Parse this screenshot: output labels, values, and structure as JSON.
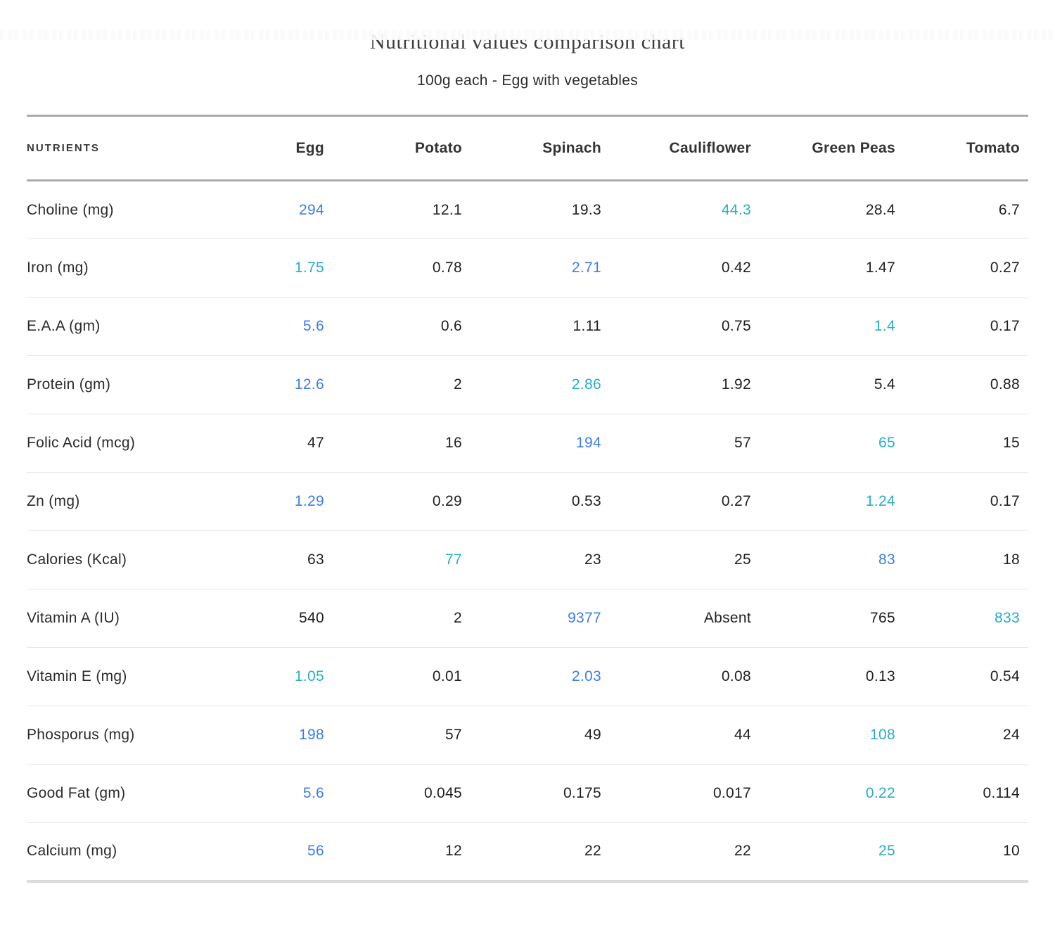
{
  "page": {
    "title": "Nutritional values comparison chart",
    "subtitle": "100g each - Egg with vegetables"
  },
  "colors": {
    "highlight_blue": "#3d7de9",
    "highlight_teal": "#29aec5",
    "line_dark": "#ababab",
    "line_light": "#e8e8e8",
    "line_bottom": "#dcdcdc"
  },
  "table": {
    "nutrients_header": "NUTRIENTS",
    "columns": [
      "Egg",
      "Potato",
      "Spinach",
      "Cauliflower",
      "Green Peas",
      "Tomato"
    ],
    "rows": [
      {
        "label": "Choline (mg)",
        "values": [
          "294",
          "12.1",
          "19.3",
          "44.3",
          "28.4",
          "6.7"
        ],
        "highlights": [
          "blue",
          null,
          null,
          "teal",
          null,
          null
        ]
      },
      {
        "label": "Iron (mg)",
        "values": [
          "1.75",
          "0.78",
          "2.71",
          "0.42",
          "1.47",
          "0.27"
        ],
        "highlights": [
          "teal",
          null,
          "blue",
          null,
          null,
          null
        ]
      },
      {
        "label": "E.A.A (gm)",
        "values": [
          "5.6",
          "0.6",
          "1.11",
          "0.75",
          "1.4",
          "0.17"
        ],
        "highlights": [
          "blue",
          null,
          null,
          null,
          "teal",
          null
        ]
      },
      {
        "label": "Protein (gm)",
        "values": [
          "12.6",
          "2",
          "2.86",
          "1.92",
          "5.4",
          "0.88"
        ],
        "highlights": [
          "blue",
          null,
          "teal",
          null,
          null,
          null
        ]
      },
      {
        "label": "Folic Acid (mcg)",
        "values": [
          "47",
          "16",
          "194",
          "57",
          "65",
          "15"
        ],
        "highlights": [
          null,
          null,
          "blue",
          null,
          "teal",
          null
        ]
      },
      {
        "label": "Zn (mg)",
        "values": [
          "1.29",
          "0.29",
          "0.53",
          "0.27",
          "1.24",
          "0.17"
        ],
        "highlights": [
          "blue",
          null,
          null,
          null,
          "teal",
          null
        ]
      },
      {
        "label": "Calories (Kcal)",
        "values": [
          "63",
          "77",
          "23",
          "25",
          "83",
          "18"
        ],
        "highlights": [
          null,
          "teal",
          null,
          null,
          "blue",
          null
        ]
      },
      {
        "label": "Vitamin A (IU)",
        "values": [
          "540",
          "2",
          "9377",
          "Absent",
          "765",
          "833"
        ],
        "highlights": [
          null,
          null,
          "blue",
          null,
          null,
          "teal"
        ]
      },
      {
        "label": "Vitamin E (mg)",
        "values": [
          "1.05",
          "0.01",
          "2.03",
          "0.08",
          "0.13",
          "0.54"
        ],
        "highlights": [
          "teal",
          null,
          "blue",
          null,
          null,
          null
        ]
      },
      {
        "label": "Phosporus (mg)",
        "values": [
          "198",
          "57",
          "49",
          "44",
          "108",
          "24"
        ],
        "highlights": [
          "blue",
          null,
          null,
          null,
          "teal",
          null
        ]
      },
      {
        "label": "Good Fat (gm)",
        "values": [
          "5.6",
          "0.045",
          "0.175",
          "0.017",
          "0.22",
          "0.114"
        ],
        "highlights": [
          "blue",
          null,
          null,
          null,
          "teal",
          null
        ]
      },
      {
        "label": "Calcium (mg)",
        "values": [
          "56",
          "12",
          "22",
          "22",
          "25",
          "10"
        ],
        "highlights": [
          "blue",
          null,
          null,
          null,
          "teal",
          null
        ]
      }
    ]
  },
  "chart_data": {
    "type": "table",
    "title": "Nutritional values comparison chart",
    "subtitle": "100g each - Egg with vegetables",
    "columns": [
      "Egg",
      "Potato",
      "Spinach",
      "Cauliflower",
      "Green Peas",
      "Tomato"
    ],
    "rows": [
      {
        "nutrient": "Choline (mg)",
        "values": [
          294,
          12.1,
          19.3,
          44.3,
          28.4,
          6.7
        ]
      },
      {
        "nutrient": "Iron (mg)",
        "values": [
          1.75,
          0.78,
          2.71,
          0.42,
          1.47,
          0.27
        ]
      },
      {
        "nutrient": "E.A.A (gm)",
        "values": [
          5.6,
          0.6,
          1.11,
          0.75,
          1.4,
          0.17
        ]
      },
      {
        "nutrient": "Protein (gm)",
        "values": [
          12.6,
          2,
          2.86,
          1.92,
          5.4,
          0.88
        ]
      },
      {
        "nutrient": "Folic Acid (mcg)",
        "values": [
          47,
          16,
          194,
          57,
          65,
          15
        ]
      },
      {
        "nutrient": "Zn (mg)",
        "values": [
          1.29,
          0.29,
          0.53,
          0.27,
          1.24,
          0.17
        ]
      },
      {
        "nutrient": "Calories (Kcal)",
        "values": [
          63,
          77,
          23,
          25,
          83,
          18
        ]
      },
      {
        "nutrient": "Vitamin A (IU)",
        "values": [
          540,
          2,
          9377,
          "Absent",
          765,
          833
        ]
      },
      {
        "nutrient": "Vitamin E (mg)",
        "values": [
          1.05,
          0.01,
          2.03,
          0.08,
          0.13,
          0.54
        ]
      },
      {
        "nutrient": "Phosporus (mg)",
        "values": [
          198,
          57,
          49,
          44,
          108,
          24
        ]
      },
      {
        "nutrient": "Good Fat (gm)",
        "values": [
          5.6,
          0.045,
          0.175,
          0.017,
          0.22,
          0.114
        ]
      },
      {
        "nutrient": "Calcium (mg)",
        "values": [
          56,
          12,
          22,
          22,
          25,
          10
        ]
      }
    ],
    "legend_semantics": "blue = highest value in row, teal = second highlighted value",
    "grid": "horizontal row separators only",
    "highlight_colors": {
      "blue": "#3d7de9",
      "teal": "#29aec5"
    }
  }
}
